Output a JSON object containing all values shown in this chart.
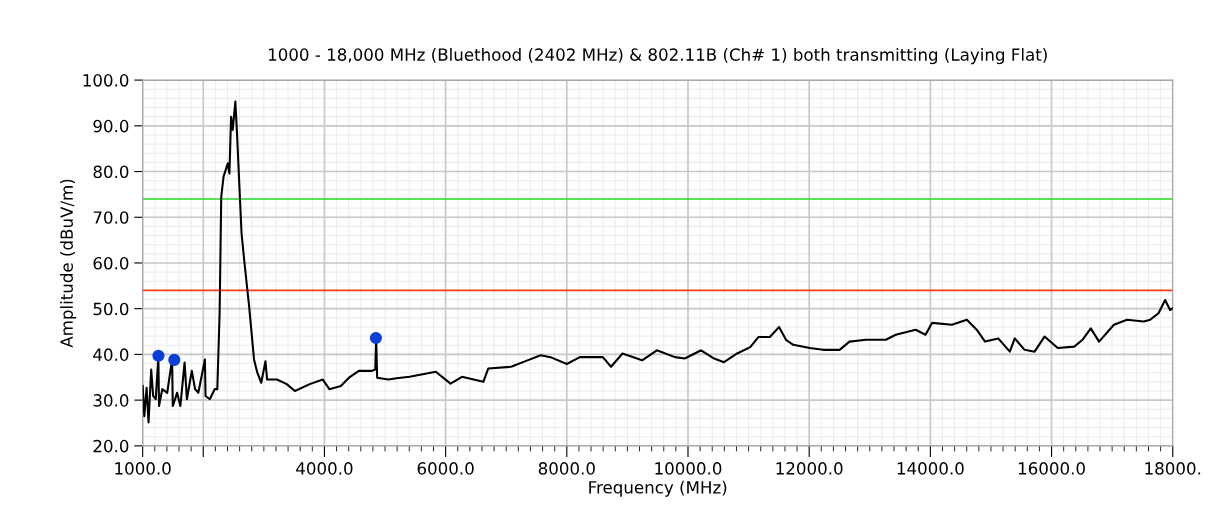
{
  "chart_data": {
    "type": "line",
    "title": "1000 - 18,000 MHz (Bluethood (2402 MHz) & 802.11B (Ch# 1) both transmitting (Laying Flat)",
    "xlabel": "Frequency (MHz)",
    "ylabel": "Amplitude (dBuV/m)",
    "xlim": [
      1000,
      18000
    ],
    "xticks": [
      {
        "value": 1000,
        "label": "1000.0"
      },
      {
        "value": 2000,
        "label": null
      },
      {
        "value": 4000,
        "label": "4000.0"
      },
      {
        "value": 6000,
        "label": "6000.0"
      },
      {
        "value": 8000,
        "label": "8000.0"
      },
      {
        "value": 10000,
        "label": "10000.0"
      },
      {
        "value": 12000,
        "label": "12000.0"
      },
      {
        "value": 14000,
        "label": "14000.0"
      },
      {
        "value": 16000,
        "label": "16000.0"
      },
      {
        "value": 18000,
        "label": "18000."
      }
    ],
    "ylim": [
      20,
      100
    ],
    "yticks": [
      {
        "value": 20,
        "label": "20.0"
      },
      {
        "value": 30,
        "label": "30.0"
      },
      {
        "value": 40,
        "label": "40.0"
      },
      {
        "value": 50,
        "label": "50.0"
      },
      {
        "value": 60,
        "label": "60.0"
      },
      {
        "value": 70,
        "label": "70.0"
      },
      {
        "value": 80,
        "label": "80.0"
      },
      {
        "value": 90,
        "label": "90.0"
      },
      {
        "value": 100,
        "label": "100.0"
      }
    ],
    "grid": true,
    "legend": false,
    "ref_lines": [
      {
        "axis": "y",
        "value": 74.0,
        "color": "#22dd22"
      },
      {
        "axis": "y",
        "value": 54.0,
        "color": "#ff3a1a"
      }
    ],
    "series": [
      {
        "color": "#000000",
        "marker": "none",
        "x": [
          1000,
          1027,
          1065,
          1097,
          1141,
          1173,
          1216,
          1259,
          1270,
          1324,
          1405,
          1486,
          1497,
          1568,
          1622,
          1692,
          1730,
          1811,
          1865,
          1919,
          2027,
          2038,
          2108,
          2189,
          2232,
          2270,
          2297,
          2335,
          2405,
          2432,
          2459,
          2486,
          2530,
          2557,
          2594,
          2632,
          2675,
          2757,
          2838,
          2892,
          2957,
          3027,
          3054,
          3216,
          3378,
          3513,
          3757,
          3973,
          4081,
          4270,
          4405,
          4568,
          4784,
          4838,
          4854,
          4870,
          5054,
          5189,
          5405,
          5838,
          6081,
          6270,
          6622,
          6703,
          7081,
          7351,
          7568,
          7730,
          8000,
          8216,
          8594,
          8730,
          8919,
          9243,
          9486,
          9784,
          9946,
          10216,
          10432,
          10594,
          10811,
          11027,
          11162,
          11351,
          11503,
          11622,
          11738,
          12011,
          12229,
          12502,
          12665,
          12938,
          13265,
          13429,
          13756,
          13920,
          14029,
          14356,
          14602,
          14765,
          14902,
          15120,
          15311,
          15393,
          15556,
          15720,
          15884,
          16102,
          16375,
          16511,
          16647,
          16784,
          17029,
          17247,
          17520,
          17629,
          17765,
          17875,
          17956,
          18000
        ],
        "values": [
          33.1,
          26.5,
          32.7,
          25.1,
          36.7,
          30.9,
          30.2,
          39.6,
          28.7,
          32.4,
          31.6,
          38.9,
          28.7,
          31.6,
          28.7,
          38.2,
          30.2,
          36.4,
          32.4,
          31.6,
          38.9,
          30.9,
          30.2,
          32.4,
          32.4,
          49.1,
          74.5,
          78.9,
          81.8,
          79.6,
          92.0,
          89.1,
          95.3,
          88.4,
          77.5,
          66.5,
          60.7,
          50.5,
          38.9,
          36.0,
          33.8,
          38.5,
          34.5,
          34.5,
          33.5,
          32.0,
          33.5,
          34.5,
          32.4,
          33.1,
          34.9,
          36.4,
          36.4,
          36.7,
          43.3,
          34.9,
          34.5,
          34.8,
          35.1,
          36.2,
          33.6,
          35.1,
          34.0,
          36.9,
          37.3,
          38.7,
          39.8,
          39.4,
          37.9,
          39.4,
          39.4,
          37.3,
          40.2,
          38.7,
          40.9,
          39.4,
          39.1,
          40.9,
          39.1,
          38.3,
          40.2,
          41.6,
          43.8,
          43.8,
          46.0,
          43.1,
          42.1,
          41.4,
          41.0,
          41.0,
          42.8,
          43.2,
          43.2,
          44.3,
          45.4,
          44.3,
          46.9,
          46.5,
          47.6,
          45.4,
          42.8,
          43.5,
          40.6,
          43.5,
          41.0,
          40.6,
          43.9,
          41.4,
          41.7,
          43.2,
          45.7,
          42.8,
          46.5,
          47.6,
          47.2,
          47.6,
          49.0,
          51.9,
          49.7,
          50.1
        ]
      },
      {
        "type": "scatter",
        "color": "#0a3fd8",
        "marker": "circle",
        "x": [
          1261,
          1522,
          4849
        ],
        "values": [
          39.7,
          38.8,
          43.6
        ]
      }
    ]
  }
}
